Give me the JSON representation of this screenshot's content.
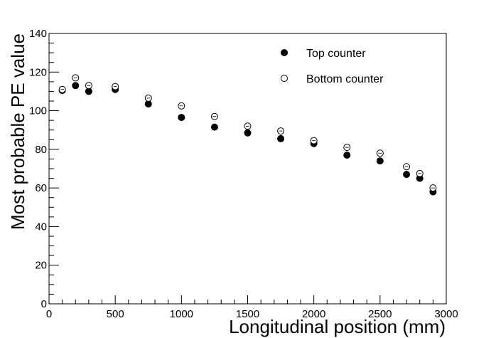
{
  "chart_data": {
    "type": "scatter",
    "title": "",
    "xlabel": "Longitudinal position (mm)",
    "ylabel": "Most probable PE value",
    "xlim": [
      0,
      3000
    ],
    "ylim": [
      0,
      140
    ],
    "x_ticks": [
      "0",
      "500",
      "1000",
      "1500",
      "2000",
      "2500",
      "3000"
    ],
    "y_ticks": [
      "0",
      "20",
      "40",
      "60",
      "80",
      "100",
      "120",
      "140"
    ],
    "grid": false,
    "legend_position": "top-right",
    "series": [
      {
        "name": "Top counter",
        "marker": "filled-circle",
        "x": [
          100,
          200,
          300,
          500,
          750,
          1000,
          1250,
          1500,
          1750,
          2000,
          2250,
          2500,
          2700,
          2800,
          2900
        ],
        "y": [
          110.5,
          113,
          110,
          111,
          103.5,
          96.5,
          91.5,
          88.5,
          85.5,
          83,
          77,
          74,
          67,
          65,
          58
        ]
      },
      {
        "name": "Bottom counter",
        "marker": "open-circle",
        "x": [
          100,
          200,
          300,
          500,
          750,
          1000,
          1250,
          1500,
          1750,
          2000,
          2250,
          2500,
          2700,
          2800,
          2900
        ],
        "y": [
          111,
          117,
          113,
          112.5,
          106.5,
          102.5,
          97,
          92,
          89.5,
          84.5,
          81,
          78,
          71,
          67.5,
          60
        ]
      }
    ]
  }
}
